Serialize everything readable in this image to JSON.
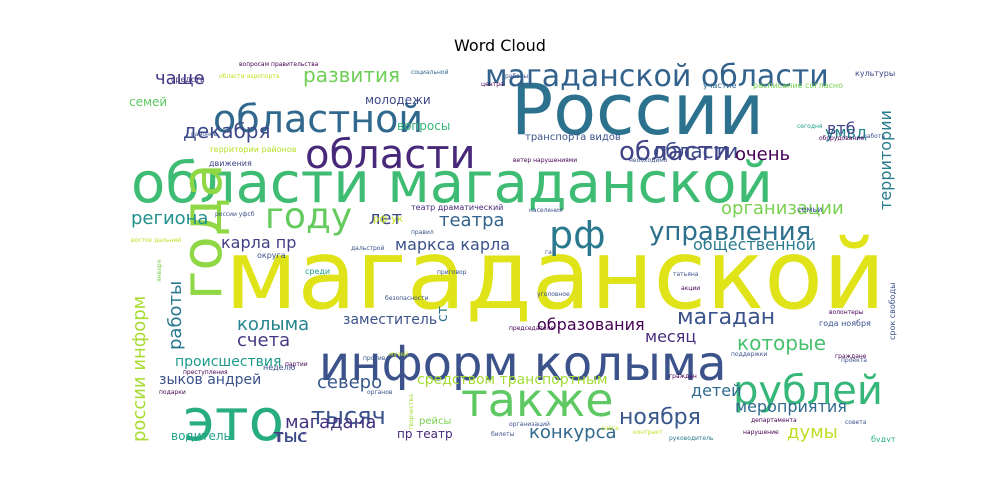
{
  "title": "Word Cloud",
  "chart_data": {
    "type": "wordcloud",
    "title": "Word Cloud",
    "words": [
      {
        "text": "магаданской",
        "color": "#dfe318"
      },
      {
        "text": "области магаданской",
        "color": "#3fbc73"
      },
      {
        "text": "России",
        "color": "#2c728e"
      },
      {
        "text": "информ колыма",
        "color": "#3b528b"
      },
      {
        "text": "это",
        "color": "#27ad81"
      },
      {
        "text": "также",
        "color": "#5ec962"
      },
      {
        "text": "года",
        "color": "#8fd744"
      },
      {
        "text": "областной",
        "color": "#31688e"
      },
      {
        "text": "области",
        "color": "#482878"
      },
      {
        "text": "году",
        "color": "#65cb5e"
      },
      {
        "text": "магаданской области",
        "color": "#33638d"
      },
      {
        "text": "рублей",
        "color": "#35b779"
      },
      {
        "text": "рф",
        "color": "#2a788e"
      },
      {
        "text": "управления",
        "color": "#2d708e"
      },
      {
        "text": "области",
        "color": "#414487"
      },
      {
        "text": "развития",
        "color": "#6ece58"
      },
      {
        "text": "декабря",
        "color": "#3e4a89"
      },
      {
        "text": "магадан",
        "color": "#3b528b"
      },
      {
        "text": "которые",
        "color": "#48c16e"
      },
      {
        "text": "тысяч",
        "color": "#3b528b"
      },
      {
        "text": "ноября",
        "color": "#38588c"
      },
      {
        "text": "мероприятия",
        "color": "#306a8e"
      },
      {
        "text": "детей",
        "color": "#30698e"
      },
      {
        "text": "думы",
        "color": "#bddf26"
      },
      {
        "text": "образования",
        "color": "#440154"
      },
      {
        "text": "конкурса",
        "color": "#31688e"
      },
      {
        "text": "магадана",
        "color": "#46337f"
      },
      {
        "text": "северо",
        "color": "#38588c"
      },
      {
        "text": "счета",
        "color": "#443a83"
      },
      {
        "text": "колыма",
        "color": "#25848e"
      },
      {
        "text": "театра",
        "color": "#33638d"
      },
      {
        "text": "лет",
        "color": "#3e4a89"
      },
      {
        "text": "маркса карла",
        "color": "#3b528b"
      },
      {
        "text": "карла пр",
        "color": "#433e85"
      },
      {
        "text": "региона",
        "color": "#21918c"
      },
      {
        "text": "чаще",
        "color": "#443983"
      },
      {
        "text": "тыс",
        "color": "#443983"
      },
      {
        "text": "области",
        "color": "#3e4989"
      },
      {
        "text": "очень",
        "color": "#440154"
      },
      {
        "text": "умвд",
        "color": "#26828e"
      },
      {
        "text": "втб",
        "color": "#404688"
      },
      {
        "text": "организации",
        "color": "#7ad151"
      },
      {
        "text": "общественной",
        "color": "#287c8e"
      },
      {
        "text": "территории",
        "color": "#287c8e"
      },
      {
        "text": "работы",
        "color": "#2a788e"
      },
      {
        "text": "россии информ",
        "color": "#a8db34"
      },
      {
        "text": "зыков андрей",
        "color": "#3b528b"
      },
      {
        "text": "происшествия",
        "color": "#1f9a8a"
      },
      {
        "text": "водитель",
        "color": "#1fa187"
      },
      {
        "text": "средством транспортным",
        "color": "#a5db36"
      },
      {
        "text": "заместитель",
        "color": "#3b528b"
      },
      {
        "text": "месяц",
        "color": "#472d7b"
      },
      {
        "text": "тыс",
        "color": "#3b528b"
      },
      {
        "text": "пр театр",
        "color": "#482878"
      },
      {
        "text": "семей",
        "color": "#5ec962"
      },
      {
        "text": "молодежи",
        "color": "#3e4989"
      },
      {
        "text": "вопросы",
        "color": "#35b779"
      },
      {
        "text": "ст",
        "color": "#2c728e"
      },
      {
        "text": "территории районов",
        "color": "#b8de29"
      },
      {
        "text": "движения",
        "color": "#414487"
      },
      {
        "text": "рф ук",
        "color": "#c2df23"
      },
      {
        "text": "театр драматический",
        "color": "#482878"
      },
      {
        "text": "транспорта видов",
        "color": "#3b528b"
      },
      {
        "text": "культуры",
        "color": "#414487"
      },
      {
        "text": "сегодня",
        "color": "#1fa187"
      },
      {
        "text": "семьи",
        "color": "#3b528b"
      },
      {
        "text": "срок свободы",
        "color": "#3b528b"
      },
      {
        "text": "года ноября",
        "color": "#3b528b"
      },
      {
        "text": "руководитель",
        "color": "#2a788e"
      },
      {
        "text": "будут",
        "color": "#29af7f"
      },
      {
        "text": "расписание согласно",
        "color": "#7ad151"
      },
      {
        "text": "участие",
        "color": "#31688e"
      },
      {
        "text": "социальной",
        "color": "#31688e"
      },
      {
        "text": "вопросам правительства",
        "color": "#440154"
      },
      {
        "text": "средств",
        "color": "#46337f"
      },
      {
        "text": "области аэропорта",
        "color": "#c2df23"
      },
      {
        "text": "районов",
        "color": "#3b528b"
      },
      {
        "text": "ветер нарушениями",
        "color": "#440154"
      },
      {
        "text": "необходимо",
        "color": "#3b528b"
      },
      {
        "text": "работа",
        "color": "#3b528b"
      },
      {
        "text": "оборудование",
        "color": "#440154"
      },
      {
        "text": "акции",
        "color": "#440154"
      },
      {
        "text": "татьяна",
        "color": "#3b528b"
      },
      {
        "text": "волонтеры",
        "color": "#440154"
      },
      {
        "text": "проекта",
        "color": "#3b528b"
      },
      {
        "text": "граждан",
        "color": "#440154"
      },
      {
        "text": "рейсы",
        "color": "#7ad151"
      },
      {
        "text": "творчества",
        "color": "#a5db36"
      },
      {
        "text": "организаций",
        "color": "#3b528b"
      },
      {
        "text": "председателя",
        "color": "#440154"
      },
      {
        "text": "безопасности",
        "color": "#3b528b"
      },
      {
        "text": "населения",
        "color": "#3b528b"
      },
      {
        "text": "округа",
        "color": "#3b528b"
      },
      {
        "text": "среди",
        "color": "#1fa187"
      },
      {
        "text": "дальстрой",
        "color": "#3b528b"
      },
      {
        "text": "восток дальний",
        "color": "#c2df23"
      },
      {
        "text": "приговор",
        "color": "#3b528b"
      },
      {
        "text": "поддержки",
        "color": "#3b528b"
      },
      {
        "text": "граждане",
        "color": "#440154"
      },
      {
        "text": "совета",
        "color": "#3b528b"
      },
      {
        "text": "департамента",
        "color": "#440154"
      },
      {
        "text": "нарушение",
        "color": "#440154"
      },
      {
        "text": "контракт",
        "color": "#c2df23"
      },
      {
        "text": "билеты",
        "color": "#3b528b"
      },
      {
        "text": "снега",
        "color": "#c2df23"
      },
      {
        "text": "неделю",
        "color": "#3b528b"
      },
      {
        "text": "подарки",
        "color": "#440154"
      },
      {
        "text": "преступления",
        "color": "#440154"
      },
      {
        "text": "против",
        "color": "#3b528b"
      },
      {
        "text": "органов",
        "color": "#3b528b"
      },
      {
        "text": "партии",
        "color": "#440154"
      },
      {
        "text": "января",
        "color": "#7ad151"
      },
      {
        "text": "музей",
        "color": "#c2df23"
      },
      {
        "text": "правил",
        "color": "#3b528b"
      },
      {
        "text": "россии уфсб",
        "color": "#3b528b"
      },
      {
        "text": "центра",
        "color": "#440154"
      },
      {
        "text": "уголовное",
        "color": "#3b528b"
      },
      {
        "text": "газ",
        "color": "#3b528b"
      },
      {
        "text": "работы",
        "color": "#3b528b"
      }
    ]
  }
}
